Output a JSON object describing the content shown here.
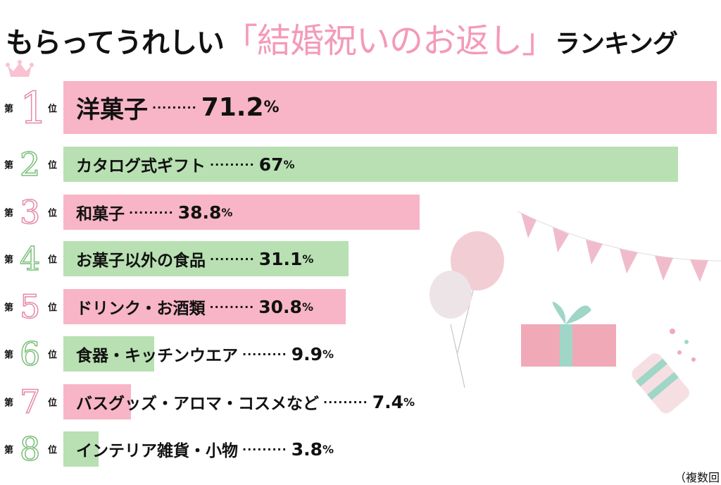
{
  "header": {
    "title_pre": "もらってうれしい",
    "title_highlight": "「結婚祝いのお返し」",
    "title_post": "ランキング"
  },
  "rank_prefix": "第",
  "rank_suffix": "位",
  "footnote": "（複数回",
  "colors": {
    "pink": "#f8b5c7",
    "green": "#b8e0b2",
    "title_accent": "#f49ab8"
  },
  "chart_data": {
    "type": "bar",
    "orientation": "horizontal",
    "title": "もらってうれしい「結婚祝いのお返し」ランキング",
    "unit": "%",
    "categories": [
      "洋菓子",
      "カタログ式ギフト",
      "和菓子",
      "お菓子以外の食品",
      "ドリンク・お酒類",
      "食器・キッチンウエア",
      "バスグッズ・アロマ・コスメなど",
      "インテリア雑貨・小物"
    ],
    "values": [
      71.2,
      67,
      38.8,
      31.1,
      30.8,
      9.9,
      7.4,
      3.8
    ],
    "value_labels": [
      "71.2",
      "67",
      "38.8",
      "31.1",
      "30.8",
      "9.9",
      "7.4",
      "3.8"
    ],
    "ranks": [
      "1",
      "2",
      "3",
      "4",
      "5",
      "6",
      "7",
      "8"
    ],
    "bar_colors": [
      "pink",
      "green",
      "pink",
      "green",
      "pink",
      "green",
      "pink",
      "green"
    ],
    "xlim": [
      0,
      71.2
    ]
  }
}
